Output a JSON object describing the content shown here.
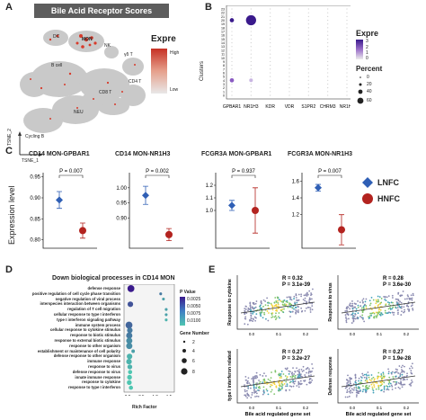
{
  "panelA": {
    "letter": "A",
    "title": "Bile Acid Receptor Scores",
    "legend_title": "Expre",
    "legend_high": "High",
    "legend_low": "Low",
    "clusters": [
      "DC",
      "MON",
      "NK",
      "γδ T",
      "B cell",
      "CD4 T",
      "CD8 T",
      "NEU",
      "Cycling B"
    ],
    "axis_x": "TSNE_1",
    "axis_y": "TSNE_2"
  },
  "panelB": {
    "letter": "B",
    "ylabel": "Clusters",
    "legend_title": "Expre",
    "expr_ticks": [
      "3",
      "2",
      "1",
      "0"
    ],
    "percent_title": "Percent",
    "percent_ticks": [
      "0",
      "20",
      "40",
      "60"
    ],
    "chart_data": {
      "type": "scatter",
      "genes": [
        "GPBAR1",
        "NR1H3",
        "KDR",
        "VDR",
        "S1PR2",
        "CHRM3",
        "NR1H4"
      ],
      "clusters": [
        "0",
        "1",
        "2",
        "3",
        "4",
        "5",
        "6",
        "7",
        "8",
        "9",
        "10",
        "11",
        "12",
        "13",
        "14",
        "15",
        "16",
        "17",
        "18",
        "19",
        "20",
        "21",
        "22",
        "23"
      ],
      "points": [
        {
          "gene": "GPBAR1",
          "cluster": "20",
          "percent": 5,
          "expr": 3
        },
        {
          "gene": "NR1H3",
          "cluster": "20",
          "percent": 60,
          "expr": 3
        },
        {
          "gene": "GPBAR1",
          "cluster": "4",
          "percent": 5,
          "expr": 2
        },
        {
          "gene": "NR1H3",
          "cluster": "4",
          "percent": 3,
          "expr": 1
        }
      ]
    }
  },
  "panelC": {
    "letter": "C",
    "ylabel": "Expression level",
    "legend": [
      {
        "name": "LNFC",
        "color": "#2f5fb5"
      },
      {
        "name": "HNFC",
        "color": "#b3231f"
      }
    ],
    "chart_data": [
      {
        "type": "scatter",
        "title": "CD14 MON-GPBAR1",
        "p": "P = 0.007",
        "yticks": [
          "0.80",
          "0.85",
          "0.90",
          "0.95"
        ],
        "ylim": [
          0.78,
          0.96
        ],
        "lnfc": {
          "mean": 0.895,
          "err": 0.02
        },
        "hnfc": {
          "mean": 0.822,
          "err": 0.018
        }
      },
      {
        "type": "scatter",
        "title": "CD14 MON-NR1H3",
        "p": "P = 0.002",
        "yticks": [
          "0.90",
          "0.95",
          "1.00"
        ],
        "ylim": [
          0.8,
          1.05
        ],
        "lnfc": {
          "mean": 0.975,
          "err": 0.03
        },
        "hnfc": {
          "mean": 0.845,
          "err": 0.02
        }
      },
      {
        "type": "scatter",
        "title": "FCGR3A MON-GPBAR1",
        "p": "P = 0.937",
        "yticks": [
          "1.0",
          "1.1",
          "1.2"
        ],
        "ylim": [
          0.7,
          1.3
        ],
        "lnfc": {
          "mean": 1.04,
          "err": 0.04
        },
        "hnfc": {
          "mean": 1.0,
          "err": 0.18
        }
      },
      {
        "type": "scatter",
        "title": "FCGR3A MON-NR1H3",
        "p": "P = 0.007",
        "yticks": [
          "1.2",
          "1.4",
          "1.6"
        ],
        "ylim": [
          0.8,
          1.7
        ],
        "lnfc": {
          "mean": 1.52,
          "err": 0.04
        },
        "hnfc": {
          "mean": 1.02,
          "err": 0.18
        }
      }
    ]
  },
  "panelD": {
    "letter": "D",
    "title": "Down biological processes in CD14 MON",
    "xlabel": "Rich Factor",
    "xticks": [
      "0.0",
      "0.5",
      "1.0",
      "1.5"
    ],
    "pvalue_title": "P Value",
    "pvalue_ticks": [
      "0.0025",
      "0.0050",
      "0.0075",
      "0.0100"
    ],
    "gene_title": "Gene Number",
    "gene_ticks": [
      "2",
      "4",
      "6",
      "8"
    ],
    "chart_data": {
      "type": "scatter",
      "terms": [
        "defense response",
        "positive regulation of cell cycle phase transition",
        "negative regulation of viral process",
        "interspecies interaction between organisms",
        "regulation of T cell migration",
        "cellular response to type I interferon",
        "type I interferon signaling pathway",
        "immune system process",
        "cellular response to cytokine stimulus",
        "response to biotic stimulus",
        "response to external biotic stimulus",
        "response to other organism",
        "establishment or maintenance of cell polarity",
        "defense response to other organism",
        "immune response",
        "response to virus",
        "defense response to virus",
        "innate immune response",
        "response to cytokine",
        "response to type I interferon"
      ],
      "points": [
        {
          "rich": 0.12,
          "genes": 8,
          "p": 0.001
        },
        {
          "rich": 1.2,
          "genes": 2,
          "p": 0.006
        },
        {
          "rich": 1.3,
          "genes": 2,
          "p": 0.008
        },
        {
          "rich": 0.1,
          "genes": 6,
          "p": 0.004
        },
        {
          "rich": 1.4,
          "genes": 2,
          "p": 0.008
        },
        {
          "rich": 1.4,
          "genes": 2,
          "p": 0.008
        },
        {
          "rich": 1.4,
          "genes": 2,
          "p": 0.009
        },
        {
          "rich": 0.05,
          "genes": 8,
          "p": 0.005
        },
        {
          "rich": 0.08,
          "genes": 6,
          "p": 0.006
        },
        {
          "rich": 0.06,
          "genes": 7,
          "p": 0.006
        },
        {
          "rich": 0.06,
          "genes": 7,
          "p": 0.007
        },
        {
          "rich": 0.06,
          "genes": 7,
          "p": 0.007
        },
        {
          "rich": 0.2,
          "genes": 3,
          "p": 0.008
        },
        {
          "rich": 0.07,
          "genes": 6,
          "p": 0.009
        },
        {
          "rich": 0.05,
          "genes": 6,
          "p": 0.009
        },
        {
          "rich": 0.08,
          "genes": 5,
          "p": 0.009
        },
        {
          "rich": 0.09,
          "genes": 4,
          "p": 0.01
        },
        {
          "rich": 0.07,
          "genes": 5,
          "p": 0.01
        },
        {
          "rich": 0.06,
          "genes": 5,
          "p": 0.01
        },
        {
          "rich": 0.12,
          "genes": 4,
          "p": 0.01
        }
      ]
    }
  },
  "panelE": {
    "letter": "E",
    "chart_data": [
      {
        "type": "scatter",
        "ylabel": "Response to cytokine",
        "xlabel": "",
        "r": "R = 0.32",
        "p": "P = 3.1e-39"
      },
      {
        "type": "scatter",
        "ylabel": "Response to virus",
        "xlabel": "",
        "r": "R = 0.28",
        "p": "P = 3.6e-30"
      },
      {
        "type": "scatter",
        "ylabel": "type I interferon related",
        "xlabel": "Bile acid regulated gene set",
        "r": "R = 0.27",
        "p": "P = 3.2e-27"
      },
      {
        "type": "scatter",
        "ylabel": "Defense response",
        "xlabel": "Bile acid regulated gene set",
        "r": "R = 0.27",
        "p": "P = 1.9e-28"
      }
    ],
    "xticks": [
      "0.0",
      "0.1",
      "0.2"
    ]
  }
}
